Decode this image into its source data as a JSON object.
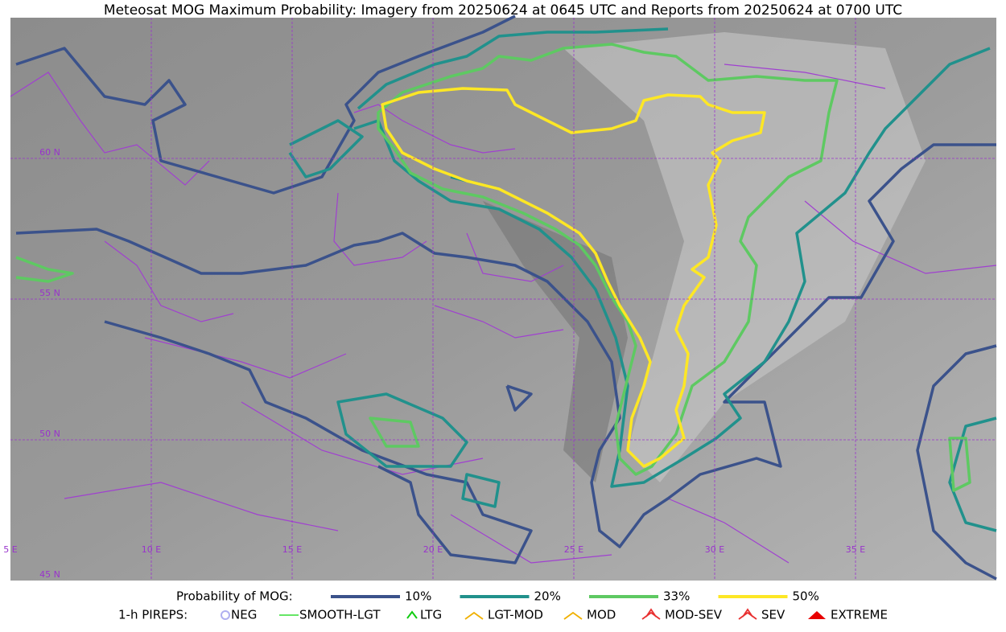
{
  "title": "Meteosat MOG Maximum Probability: Imagery from 20250624 at 0645 UTC and Reports from 20250624 at 0700 UTC",
  "gridlines": {
    "longitudes": [
      "5 E",
      "10 E",
      "15 E",
      "20 E",
      "25 E",
      "30 E",
      "35 E"
    ],
    "latitudes": [
      "60 N",
      "55 N",
      "50 N",
      "45 N"
    ]
  },
  "legend": {
    "probability_label": "Probability of MOG:",
    "probability_levels": [
      {
        "label": "10%",
        "color": "#3b528b"
      },
      {
        "label": "20%",
        "color": "#21918c"
      },
      {
        "label": "33%",
        "color": "#5ec962"
      },
      {
        "label": "50%",
        "color": "#fde725"
      }
    ],
    "pireps_label": "1-h PIREPS:",
    "pireps": [
      {
        "label": "NEG",
        "color": "#b0b0f0"
      },
      {
        "label": "SMOOTH-LGT",
        "color": "#33dd33"
      },
      {
        "label": "LTG",
        "color": "#11cc11"
      },
      {
        "label": "LGT-MOD",
        "color": "#f0b000"
      },
      {
        "label": "MOD",
        "color": "#f0b000"
      },
      {
        "label": "MOD-SEV",
        "color": "#e83030"
      },
      {
        "label": "SEV",
        "color": "#e83030"
      },
      {
        "label": "EXTREME",
        "color": "#e80000"
      }
    ]
  }
}
